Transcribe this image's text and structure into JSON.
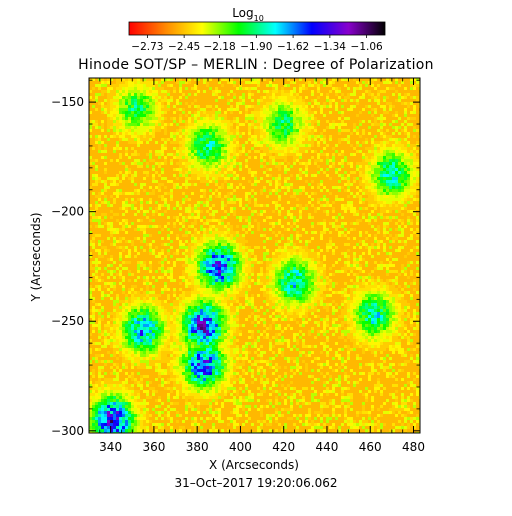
{
  "chart_data": {
    "type": "heatmap",
    "title": "Hinode SOT/SP – MERLIN : Degree of Polarization",
    "xlabel": "X (Arcseconds)",
    "ylabel": "Y (Arcseconds)",
    "xlim": [
      330,
      483
    ],
    "ylim": [
      -301,
      -139
    ],
    "x_ticks": [
      340,
      360,
      380,
      400,
      420,
      440,
      460,
      480
    ],
    "x_tick_labels": [
      "340",
      "360",
      "380",
      "400",
      "420",
      "440",
      "460",
      "480"
    ],
    "y_ticks": [
      -150,
      -200,
      -250,
      -300
    ],
    "y_tick_labels": [
      "−150",
      "−200",
      "−250",
      "−300"
    ],
    "colorbar": {
      "label_base": "Log",
      "label_sub": "10",
      "range": [
        -2.87,
        -0.92
      ],
      "ticks": [
        -2.73,
        -2.45,
        -2.18,
        -1.9,
        -1.62,
        -1.34,
        -1.06
      ],
      "tick_labels": [
        "−2.73",
        "−2.45",
        "−2.18",
        "−1.90",
        "−1.62",
        "−1.34",
        "−1.06"
      ],
      "colormap": [
        "#ff0000",
        "#ff8800",
        "#ffff00",
        "#00ff00",
        "#00ffff",
        "#0000ff",
        "#8800cc",
        "#000000"
      ]
    },
    "background_value": -2.5,
    "enhanced_regions": [
      {
        "x": 390,
        "y": -225,
        "peak": -1.35
      },
      {
        "x": 383,
        "y": -252,
        "peak": -1.25
      },
      {
        "x": 383,
        "y": -270,
        "peak": -1.35
      },
      {
        "x": 355,
        "y": -254,
        "peak": -1.55
      },
      {
        "x": 341,
        "y": -295,
        "peak": -1.25
      },
      {
        "x": 425,
        "y": -232,
        "peak": -1.7
      },
      {
        "x": 462,
        "y": -247,
        "peak": -1.75
      },
      {
        "x": 385,
        "y": -170,
        "peak": -1.8
      },
      {
        "x": 352,
        "y": -153,
        "peak": -1.9
      },
      {
        "x": 470,
        "y": -183,
        "peak": -1.75
      },
      {
        "x": 420,
        "y": -160,
        "peak": -1.9
      }
    ],
    "grid": false
  },
  "footer": {
    "timestamp": "31–Oct–2017 19:20:06.062"
  }
}
